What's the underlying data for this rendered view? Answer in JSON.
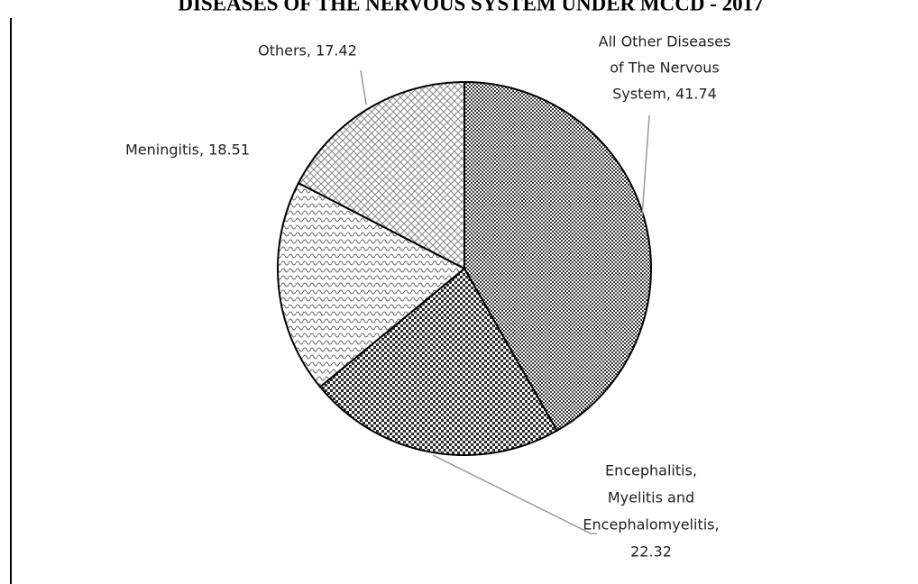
{
  "chart_data": {
    "type": "pie",
    "title": "DISEASES OF THE NERVOUS SYSTEM UNDER MCCD - 2017",
    "values": [
      41.74,
      22.32,
      18.51,
      17.42
    ],
    "value_labels": [
      [
        "All Other Diseases",
        "of The Nervous",
        "System, 41.74"
      ],
      [
        "Encephalitis,",
        "Myelitis and",
        "Encephalomyelitis,",
        "22.32"
      ],
      [
        "Meningitis, 18.51"
      ],
      [
        "Others, 17.42"
      ]
    ],
    "colors": [
      "#3a3a3a",
      "#2a2a2a",
      "#6a6a6a",
      "#8a8a8a"
    ]
  }
}
